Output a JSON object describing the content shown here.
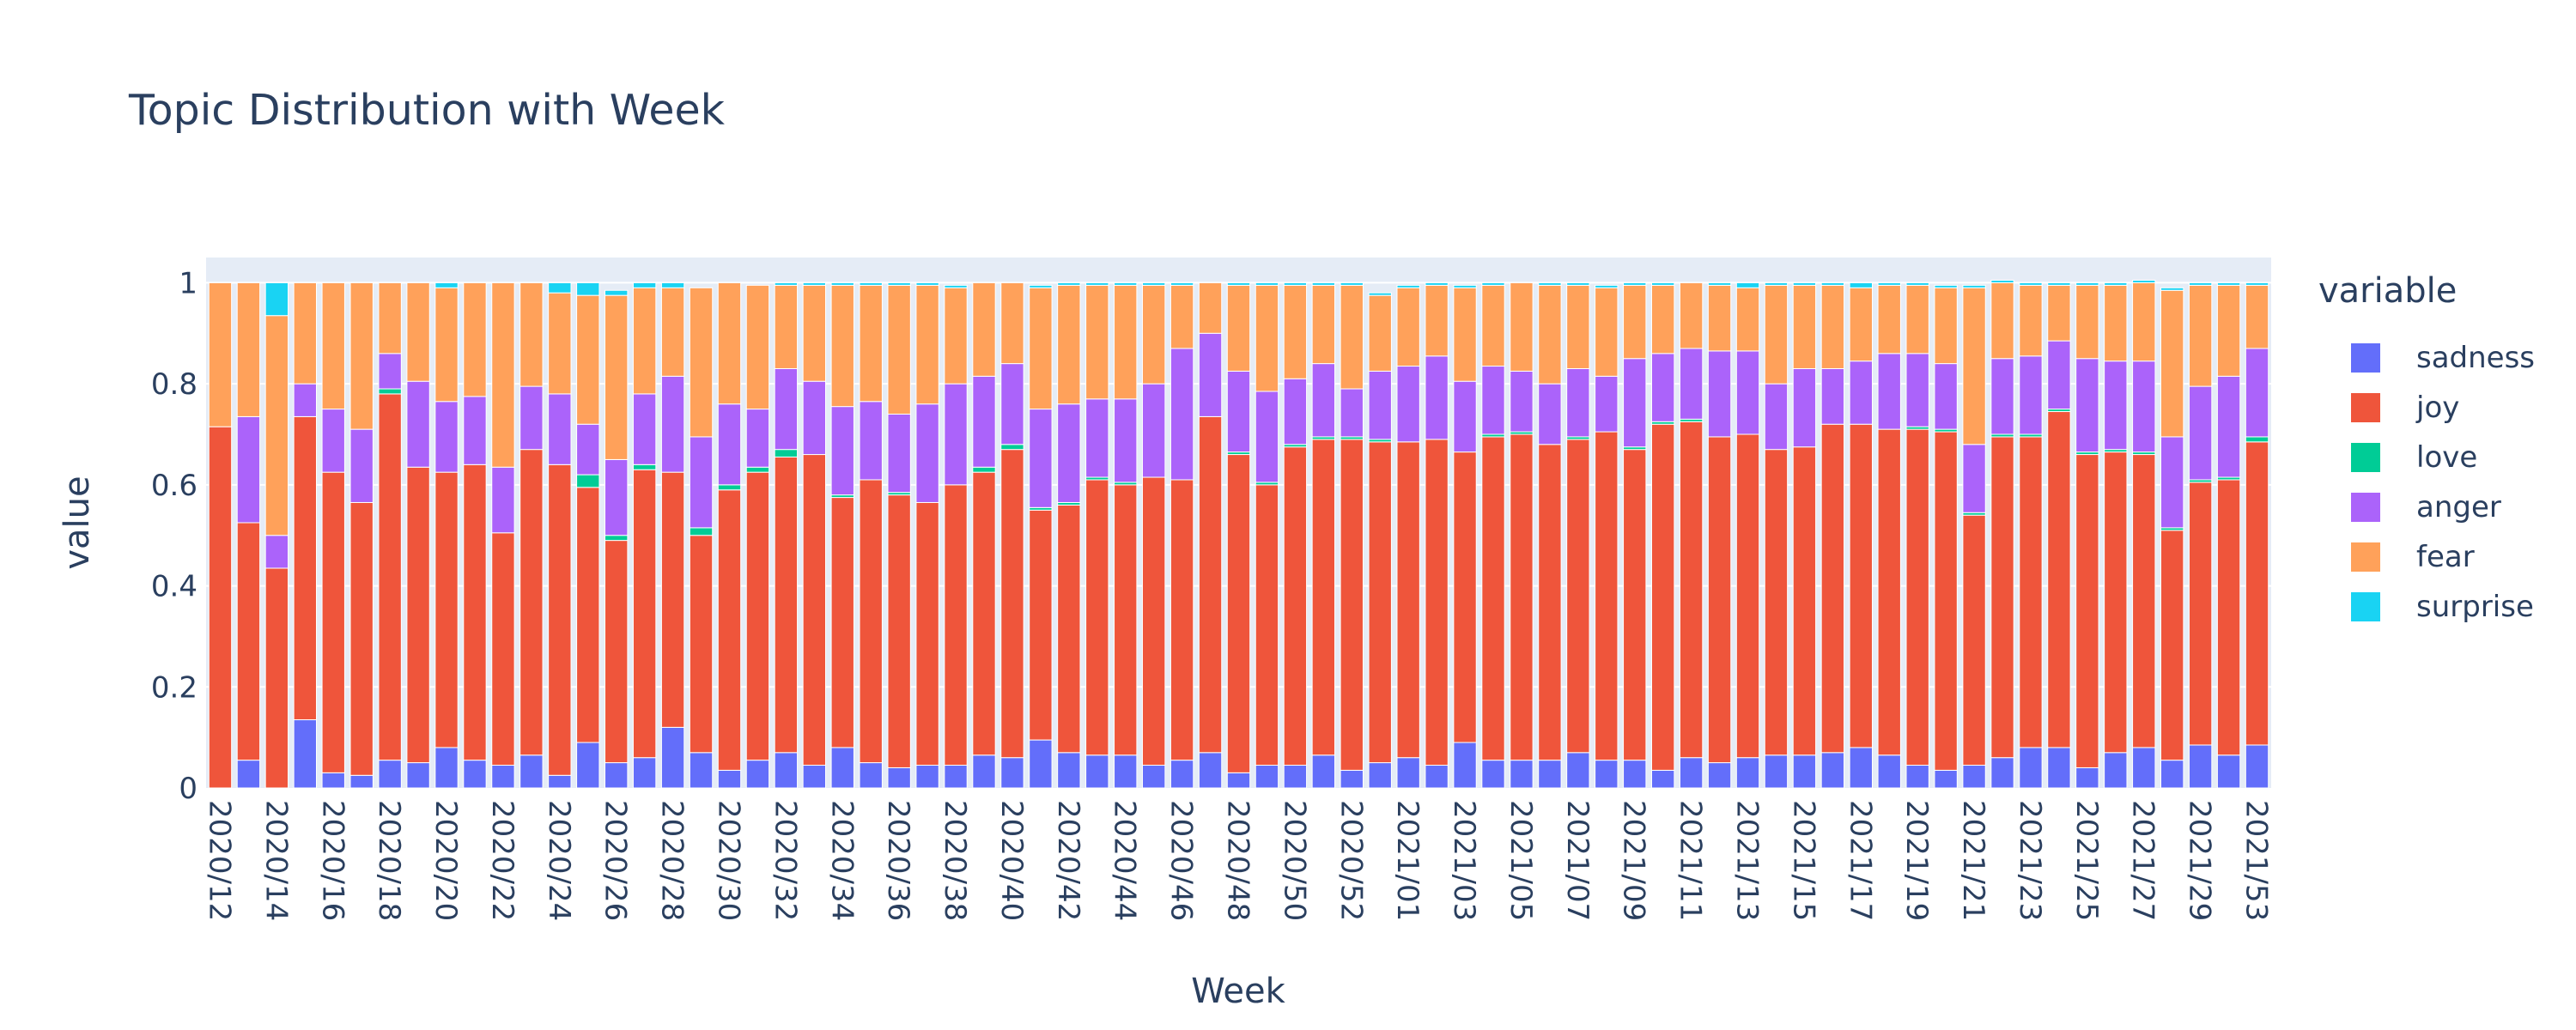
{
  "chart_data": {
    "type": "bar",
    "barmode": "stack",
    "title": "Topic Distribution with Week",
    "xlabel": "Week",
    "ylabel": "value",
    "ylim": [
      0,
      1.05
    ],
    "yticks": [
      0,
      0.2,
      0.4,
      0.6,
      0.8,
      1
    ],
    "ytick_labels": [
      "0",
      "0.2",
      "0.4",
      "0.6",
      "0.8",
      "1"
    ],
    "legend_title": "variable",
    "legend_position": "right",
    "grid": true,
    "categories": [
      "2020/12",
      "2020/13",
      "2020/14",
      "2020/15",
      "2020/16",
      "2020/17",
      "2020/18",
      "2020/19",
      "2020/20",
      "2020/21",
      "2020/22",
      "2020/23",
      "2020/24",
      "2020/25",
      "2020/26",
      "2020/27",
      "2020/28",
      "2020/29",
      "2020/30",
      "2020/31",
      "2020/32",
      "2020/33",
      "2020/34",
      "2020/35",
      "2020/36",
      "2020/37",
      "2020/38",
      "2020/39",
      "2020/40",
      "2020/41",
      "2020/42",
      "2020/43",
      "2020/44",
      "2020/45",
      "2020/46",
      "2020/47",
      "2020/48",
      "2020/49",
      "2020/50",
      "2020/51",
      "2020/52",
      "2020/53",
      "2021/01",
      "2021/02",
      "2021/03",
      "2021/04",
      "2021/05",
      "2021/06",
      "2021/07",
      "2021/08",
      "2021/09",
      "2021/10",
      "2021/11",
      "2021/12",
      "2021/13",
      "2021/14",
      "2021/15",
      "2021/16",
      "2021/17",
      "2021/18",
      "2021/19",
      "2021/20",
      "2021/21",
      "2021/22",
      "2021/23",
      "2021/24",
      "2021/25",
      "2021/26",
      "2021/27",
      "2021/28",
      "2021/29",
      "2021/30",
      "2021/53"
    ],
    "tick_labels": [
      "2020/12",
      "2020/14",
      "2020/16",
      "2020/18",
      "2020/20",
      "2020/22",
      "2020/24",
      "2020/26",
      "2020/28",
      "2020/30",
      "2020/32",
      "2020/34",
      "2020/36",
      "2020/38",
      "2020/40",
      "2020/42",
      "2020/44",
      "2020/46",
      "2020/48",
      "2020/50",
      "2020/52",
      "2021/01",
      "2021/03",
      "2021/05",
      "2021/07",
      "2021/09",
      "2021/11",
      "2021/13",
      "2021/15",
      "2021/17",
      "2021/19",
      "2021/21",
      "2021/23",
      "2021/25",
      "2021/27",
      "2021/29",
      "2021/53"
    ],
    "series": [
      {
        "name": "sadness",
        "color": "#636efa",
        "values": [
          0.0,
          0.055,
          0.0,
          0.135,
          0.03,
          0.025,
          0.055,
          0.05,
          0.08,
          0.055,
          0.045,
          0.065,
          0.025,
          0.09,
          0.05,
          0.06,
          0.12,
          0.07,
          0.035,
          0.055,
          0.07,
          0.045,
          0.08,
          0.05,
          0.04,
          0.045,
          0.045,
          0.065,
          0.06,
          0.095,
          0.07,
          0.065,
          0.065,
          0.045,
          0.055,
          0.07,
          0.03,
          0.045,
          0.045,
          0.065,
          0.035,
          0.05,
          0.06,
          0.045,
          0.09,
          0.055,
          0.055,
          0.055,
          0.07,
          0.055,
          0.055,
          0.035,
          0.06,
          0.05,
          0.06,
          0.065,
          0.065,
          0.07,
          0.08,
          0.065,
          0.045,
          0.035,
          0.045,
          0.06,
          0.08,
          0.08,
          0.04,
          0.07,
          0.08,
          0.055,
          0.085,
          0.065,
          0.085
        ]
      },
      {
        "name": "joy",
        "color": "#ef553b",
        "values": [
          0.715,
          0.47,
          0.435,
          0.6,
          0.595,
          0.54,
          0.725,
          0.585,
          0.545,
          0.585,
          0.46,
          0.605,
          0.615,
          0.505,
          0.44,
          0.57,
          0.505,
          0.43,
          0.555,
          0.57,
          0.585,
          0.615,
          0.495,
          0.56,
          0.54,
          0.52,
          0.555,
          0.56,
          0.61,
          0.455,
          0.49,
          0.545,
          0.535,
          0.57,
          0.555,
          0.665,
          0.63,
          0.555,
          0.63,
          0.625,
          0.655,
          0.635,
          0.625,
          0.645,
          0.575,
          0.64,
          0.645,
          0.625,
          0.62,
          0.65,
          0.615,
          0.685,
          0.665,
          0.645,
          0.64,
          0.605,
          0.61,
          0.65,
          0.64,
          0.645,
          0.665,
          0.67,
          0.495,
          0.635,
          0.615,
          0.665,
          0.62,
          0.595,
          0.58,
          0.455,
          0.52,
          0.545,
          0.6
        ]
      },
      {
        "name": "love",
        "color": "#00cc96",
        "values": [
          0.0,
          0.0,
          0.0,
          0.0,
          0.0,
          0.0,
          0.01,
          0.0,
          0.0,
          0.0,
          0.0,
          0.0,
          0.0,
          0.025,
          0.01,
          0.01,
          0.0,
          0.015,
          0.01,
          0.01,
          0.015,
          0.0,
          0.005,
          0.0,
          0.005,
          0.0,
          0.0,
          0.01,
          0.01,
          0.005,
          0.005,
          0.005,
          0.005,
          0.0,
          0.0,
          0.0,
          0.005,
          0.005,
          0.005,
          0.005,
          0.005,
          0.005,
          0.0,
          0.0,
          0.0,
          0.005,
          0.005,
          0.0,
          0.005,
          0.0,
          0.005,
          0.005,
          0.005,
          0.0,
          0.0,
          0.0,
          0.0,
          0.0,
          0.0,
          0.0,
          0.005,
          0.005,
          0.005,
          0.005,
          0.005,
          0.005,
          0.005,
          0.005,
          0.005,
          0.005,
          0.005,
          0.005,
          0.01
        ]
      },
      {
        "name": "anger",
        "color": "#ab63fa",
        "values": [
          0.0,
          0.21,
          0.065,
          0.065,
          0.125,
          0.145,
          0.07,
          0.17,
          0.14,
          0.135,
          0.13,
          0.125,
          0.14,
          0.1,
          0.15,
          0.14,
          0.19,
          0.18,
          0.16,
          0.115,
          0.16,
          0.145,
          0.175,
          0.155,
          0.155,
          0.195,
          0.2,
          0.18,
          0.16,
          0.195,
          0.195,
          0.155,
          0.165,
          0.185,
          0.26,
          0.165,
          0.16,
          0.18,
          0.13,
          0.145,
          0.095,
          0.135,
          0.15,
          0.165,
          0.14,
          0.135,
          0.12,
          0.12,
          0.135,
          0.11,
          0.175,
          0.135,
          0.14,
          0.17,
          0.165,
          0.13,
          0.155,
          0.11,
          0.125,
          0.15,
          0.145,
          0.13,
          0.135,
          0.15,
          0.155,
          0.135,
          0.185,
          0.175,
          0.18,
          0.18,
          0.185,
          0.2,
          0.175
        ]
      },
      {
        "name": "fear",
        "color": "#ffa15a",
        "values": [
          0.285,
          0.265,
          0.435,
          0.2,
          0.25,
          0.29,
          0.14,
          0.195,
          0.225,
          0.225,
          0.365,
          0.205,
          0.2,
          0.255,
          0.325,
          0.21,
          0.175,
          0.295,
          0.24,
          0.245,
          0.165,
          0.19,
          0.24,
          0.23,
          0.255,
          0.235,
          0.19,
          0.185,
          0.16,
          0.24,
          0.235,
          0.225,
          0.225,
          0.195,
          0.125,
          0.1,
          0.17,
          0.21,
          0.185,
          0.155,
          0.205,
          0.15,
          0.155,
          0.14,
          0.185,
          0.16,
          0.175,
          0.195,
          0.165,
          0.175,
          0.145,
          0.135,
          0.13,
          0.13,
          0.125,
          0.195,
          0.165,
          0.165,
          0.145,
          0.135,
          0.135,
          0.15,
          0.31,
          0.15,
          0.14,
          0.11,
          0.145,
          0.15,
          0.155,
          0.29,
          0.2,
          0.18,
          0.125
        ]
      },
      {
        "name": "surprise",
        "color": "#19d3f3",
        "values": [
          0.0,
          0.0,
          0.065,
          0.0,
          0.0,
          0.0,
          0.0,
          0.0,
          0.01,
          0.0,
          0.0,
          0.0,
          0.02,
          0.025,
          0.01,
          0.01,
          0.01,
          0.0,
          0.0,
          0.0,
          0.005,
          0.005,
          0.005,
          0.005,
          0.005,
          0.005,
          0.005,
          0.0,
          0.0,
          0.005,
          0.005,
          0.005,
          0.005,
          0.005,
          0.005,
          0.0,
          0.005,
          0.005,
          0.005,
          0.005,
          0.005,
          0.005,
          0.005,
          0.005,
          0.005,
          0.005,
          0.0,
          0.005,
          0.005,
          0.005,
          0.005,
          0.005,
          0.0,
          0.005,
          0.01,
          0.005,
          0.005,
          0.005,
          0.01,
          0.005,
          0.005,
          0.005,
          0.005,
          0.005,
          0.005,
          0.005,
          0.005,
          0.005,
          0.005,
          0.005,
          0.005,
          0.005,
          0.005
        ]
      }
    ]
  }
}
